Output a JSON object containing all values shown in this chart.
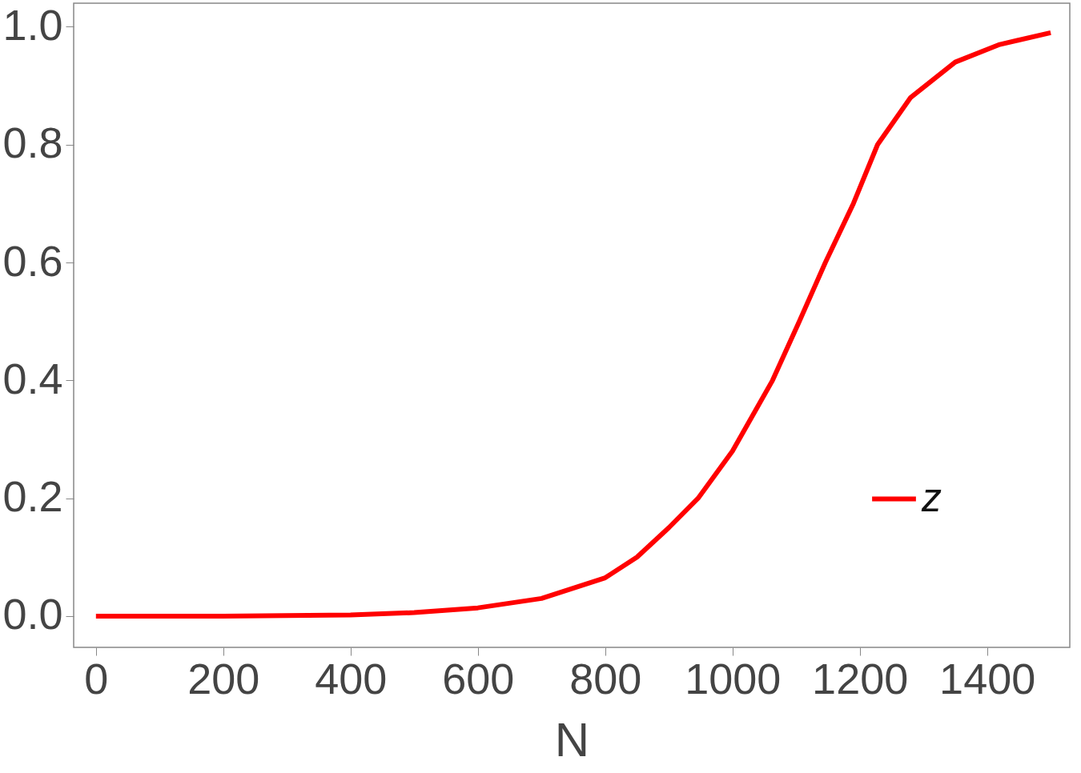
{
  "chart_data": {
    "type": "line",
    "xlabel": "N",
    "x": [
      0,
      200,
      400,
      500,
      600,
      700,
      800,
      850,
      900,
      946,
      1000,
      1063,
      1105,
      1146,
      1190,
      1228,
      1280,
      1350,
      1420,
      1500
    ],
    "series": [
      {
        "name": "z",
        "color": "#ff0000",
        "values": [
          0,
          0,
          0.002,
          0.006,
          0.014,
          0.03,
          0.065,
          0.1,
          0.15,
          0.2,
          0.28,
          0.4,
          0.5,
          0.6,
          0.7,
          0.8,
          0.88,
          0.94,
          0.97,
          0.99
        ]
      }
    ],
    "xlim": [
      -35,
      1530
    ],
    "ylim": [
      -0.053,
      1.04
    ],
    "xticks": [
      0,
      200,
      400,
      600,
      800,
      1000,
      1200,
      1400
    ],
    "yticks": [
      {
        "value": 0,
        "label": "0.0"
      },
      {
        "value": 0.2,
        "label": "0.2"
      },
      {
        "value": 0.4,
        "label": "0.4"
      },
      {
        "value": 0.6,
        "label": "0.6"
      },
      {
        "value": 0.8,
        "label": "0.8"
      },
      {
        "value": 1,
        "label": "1.0"
      }
    ],
    "grid": false,
    "legend": "bottom right",
    "marker": "none",
    "line_style": "solid"
  }
}
